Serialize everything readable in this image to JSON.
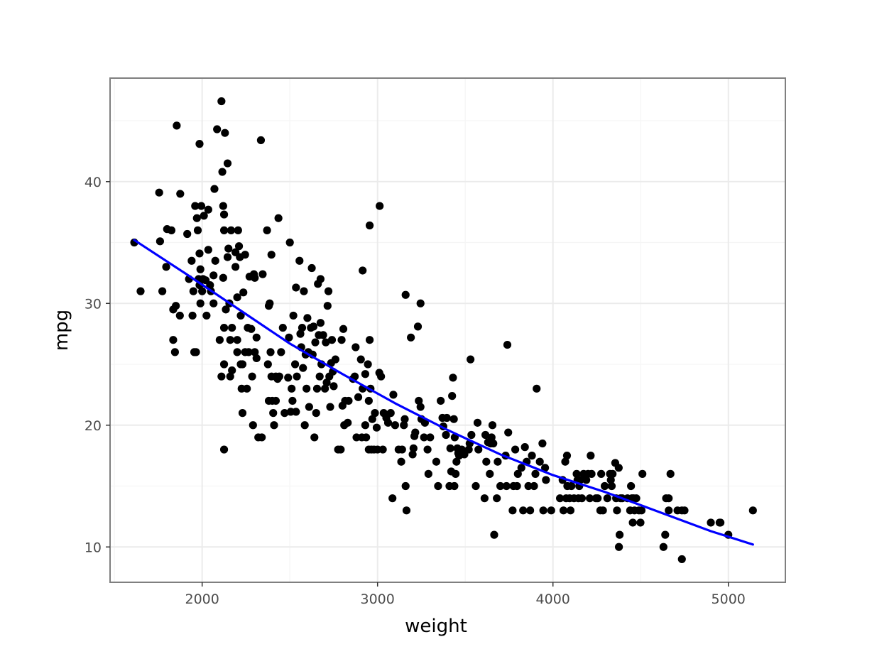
{
  "chart_data": {
    "type": "scatter",
    "title": "",
    "xlabel": "weight",
    "ylabel": "mpg",
    "xlim": [
      1475,
      5325
    ],
    "ylim": [
      7.1,
      48.5
    ],
    "x_ticks": [
      2000,
      3000,
      4000,
      5000
    ],
    "y_ticks": [
      10,
      20,
      30,
      40
    ],
    "x_tick_labels": [
      "2000",
      "3000",
      "4000",
      "5000"
    ],
    "y_tick_labels": [
      "10",
      "20",
      "30",
      "40"
    ],
    "grid": true,
    "legend": "none",
    "point_color": "#000000",
    "trend_color": "#0000ff",
    "panel_border_color": "#7f7f7f",
    "grid_major_color": "#ebebeb",
    "grid_minor_color": "#f5f5f5",
    "points": [
      [
        1613,
        35
      ],
      [
        1649,
        31
      ],
      [
        1755,
        39.1
      ],
      [
        1760,
        35.1
      ],
      [
        1773,
        31
      ],
      [
        1795,
        33
      ],
      [
        1800,
        36.1
      ],
      [
        1825,
        36
      ],
      [
        1835,
        29.5
      ],
      [
        1845,
        26
      ],
      [
        1835,
        27
      ],
      [
        1850,
        29.8
      ],
      [
        1855,
        44.6
      ],
      [
        1875,
        39
      ],
      [
        1873,
        29
      ],
      [
        1915,
        35.7
      ],
      [
        1925,
        32
      ],
      [
        1940,
        33.5
      ],
      [
        1945,
        29
      ],
      [
        1950,
        31
      ],
      [
        1955,
        26
      ],
      [
        1965,
        26
      ],
      [
        1960,
        38
      ],
      [
        1970,
        37
      ],
      [
        1975,
        36
      ],
      [
        1980,
        32
      ],
      [
        1985,
        34.1
      ],
      [
        1985,
        31.5
      ],
      [
        1985,
        43.1
      ],
      [
        1990,
        32.8
      ],
      [
        1990,
        30
      ],
      [
        1995,
        38
      ],
      [
        2000,
        31
      ],
      [
        2005,
        32
      ],
      [
        2010,
        37.2
      ],
      [
        2020,
        31.9
      ],
      [
        2025,
        29
      ],
      [
        2035,
        37.7
      ],
      [
        2035,
        34.4
      ],
      [
        2045,
        31.5
      ],
      [
        2050,
        31
      ],
      [
        2065,
        32.3
      ],
      [
        2065,
        30
      ],
      [
        2070,
        39.4
      ],
      [
        2075,
        33.5
      ],
      [
        2085,
        44.3
      ],
      [
        2100,
        27
      ],
      [
        2110,
        46.6
      ],
      [
        2110,
        24
      ],
      [
        2115,
        40.8
      ],
      [
        2120,
        32.1
      ],
      [
        2120,
        38
      ],
      [
        2125,
        37.3
      ],
      [
        2125,
        36
      ],
      [
        2125,
        28
      ],
      [
        2125,
        25
      ],
      [
        2125,
        18
      ],
      [
        2130,
        44
      ],
      [
        2135,
        29.5
      ],
      [
        2145,
        41.5
      ],
      [
        2145,
        33.8
      ],
      [
        2150,
        34.5
      ],
      [
        2155,
        30
      ],
      [
        2160,
        27
      ],
      [
        2160,
        24
      ],
      [
        2165,
        36
      ],
      [
        2170,
        28
      ],
      [
        2170,
        24.5
      ],
      [
        2190,
        34.2
      ],
      [
        2190,
        33
      ],
      [
        2200,
        30.5
      ],
      [
        2200,
        27
      ],
      [
        2200,
        26
      ],
      [
        2205,
        36
      ],
      [
        2210,
        34.7
      ],
      [
        2215,
        33.8
      ],
      [
        2220,
        29
      ],
      [
        2220,
        25
      ],
      [
        2225,
        23
      ],
      [
        2230,
        21
      ],
      [
        2230,
        25
      ],
      [
        2235,
        30.9
      ],
      [
        2245,
        34
      ],
      [
        2245,
        26
      ],
      [
        2255,
        23
      ],
      [
        2260,
        28
      ],
      [
        2265,
        26
      ],
      [
        2270,
        32.2
      ],
      [
        2280,
        27.9
      ],
      [
        2285,
        24
      ],
      [
        2290,
        20
      ],
      [
        2295,
        32.4
      ],
      [
        2300,
        32.1
      ],
      [
        2300,
        26
      ],
      [
        2310,
        25.5
      ],
      [
        2310,
        27.2
      ],
      [
        2320,
        19
      ],
      [
        2335,
        43.4
      ],
      [
        2340,
        19
      ],
      [
        2345,
        32.4
      ],
      [
        2370,
        36
      ],
      [
        2375,
        25
      ],
      [
        2380,
        29.8
      ],
      [
        2380,
        22
      ],
      [
        2385,
        30
      ],
      [
        2390,
        26
      ],
      [
        2395,
        24
      ],
      [
        2395,
        34
      ],
      [
        2400,
        22
      ],
      [
        2405,
        21
      ],
      [
        2410,
        20
      ],
      [
        2420,
        22
      ],
      [
        2420,
        24
      ],
      [
        2430,
        23.8
      ],
      [
        2435,
        37
      ],
      [
        2440,
        24
      ],
      [
        2450,
        26
      ],
      [
        2460,
        28
      ],
      [
        2470,
        21
      ],
      [
        2490,
        23.9
      ],
      [
        2495,
        27.2
      ],
      [
        2500,
        35
      ],
      [
        2505,
        21.1
      ],
      [
        2510,
        23
      ],
      [
        2515,
        22
      ],
      [
        2520,
        29
      ],
      [
        2530,
        25
      ],
      [
        2535,
        31.3
      ],
      [
        2535,
        21.1
      ],
      [
        2540,
        24
      ],
      [
        2555,
        33.5
      ],
      [
        2560,
        27.5
      ],
      [
        2565,
        26.4
      ],
      [
        2570,
        28
      ],
      [
        2575,
        24.7
      ],
      [
        2580,
        31
      ],
      [
        2585,
        20
      ],
      [
        2590,
        25.8
      ],
      [
        2595,
        23
      ],
      [
        2600,
        28.8
      ],
      [
        2605,
        26
      ],
      [
        2610,
        21.5
      ],
      [
        2620,
        28
      ],
      [
        2625,
        32.9
      ],
      [
        2630,
        25.8
      ],
      [
        2635,
        28.1
      ],
      [
        2640,
        19
      ],
      [
        2645,
        26.8
      ],
      [
        2650,
        21
      ],
      [
        2655,
        23
      ],
      [
        2660,
        31.6
      ],
      [
        2665,
        27.4
      ],
      [
        2670,
        24
      ],
      [
        2675,
        28.4
      ],
      [
        2675,
        32
      ],
      [
        2680,
        25
      ],
      [
        2690,
        27.4
      ],
      [
        2700,
        23
      ],
      [
        2705,
        26.8
      ],
      [
        2710,
        23.5
      ],
      [
        2715,
        29.8
      ],
      [
        2720,
        31
      ],
      [
        2725,
        24
      ],
      [
        2730,
        21.5
      ],
      [
        2735,
        25.1
      ],
      [
        2740,
        27
      ],
      [
        2745,
        24.4
      ],
      [
        2750,
        23.2
      ],
      [
        2760,
        25.4
      ],
      [
        2775,
        18
      ],
      [
        2790,
        18
      ],
      [
        2795,
        27
      ],
      [
        2800,
        21.6
      ],
      [
        2805,
        27.9
      ],
      [
        2810,
        20
      ],
      [
        2815,
        22
      ],
      [
        2830,
        20.2
      ],
      [
        2835,
        22
      ],
      [
        2860,
        23.8
      ],
      [
        2870,
        24
      ],
      [
        2875,
        26.4
      ],
      [
        2880,
        19
      ],
      [
        2890,
        22.3
      ],
      [
        2905,
        25.4
      ],
      [
        2910,
        19
      ],
      [
        2915,
        23
      ],
      [
        2915,
        32.7
      ],
      [
        2930,
        20
      ],
      [
        2930,
        24.2
      ],
      [
        2935,
        19
      ],
      [
        2945,
        25
      ],
      [
        2950,
        18
      ],
      [
        2950,
        22
      ],
      [
        2955,
        36.4
      ],
      [
        2955,
        27
      ],
      [
        2960,
        23
      ],
      [
        2965,
        18
      ],
      [
        2970,
        20.5
      ],
      [
        2980,
        18
      ],
      [
        2985,
        21
      ],
      [
        2995,
        19.8
      ],
      [
        3000,
        18
      ],
      [
        3010,
        24.3
      ],
      [
        3012,
        38
      ],
      [
        3020,
        24
      ],
      [
        3030,
        18
      ],
      [
        3035,
        21
      ],
      [
        3050,
        20.6
      ],
      [
        3060,
        20.2
      ],
      [
        3075,
        21
      ],
      [
        3085,
        14
      ],
      [
        3090,
        22.5
      ],
      [
        3100,
        20
      ],
      [
        3120,
        18
      ],
      [
        3135,
        17
      ],
      [
        3140,
        18
      ],
      [
        3150,
        20
      ],
      [
        3155,
        20.5
      ],
      [
        3160,
        15
      ],
      [
        3160,
        30.7
      ],
      [
        3165,
        13
      ],
      [
        3190,
        27.2
      ],
      [
        3200,
        17.6
      ],
      [
        3205,
        18.1
      ],
      [
        3210,
        19.1
      ],
      [
        3215,
        19.4
      ],
      [
        3230,
        28.1
      ],
      [
        3235,
        22
      ],
      [
        3245,
        30
      ],
      [
        3245,
        21.5
      ],
      [
        3250,
        20.5
      ],
      [
        3265,
        19
      ],
      [
        3270,
        20.2
      ],
      [
        3285,
        18
      ],
      [
        3290,
        16
      ],
      [
        3300,
        19
      ],
      [
        3335,
        17
      ],
      [
        3345,
        15
      ],
      [
        3360,
        22
      ],
      [
        3370,
        20.6
      ],
      [
        3375,
        19.9
      ],
      [
        3390,
        19.2
      ],
      [
        3395,
        20.6
      ],
      [
        3410,
        15
      ],
      [
        3415,
        18.1
      ],
      [
        3420,
        16.2
      ],
      [
        3425,
        22.4
      ],
      [
        3430,
        23.9
      ],
      [
        3435,
        20.5
      ],
      [
        3438,
        15
      ],
      [
        3440,
        19
      ],
      [
        3445,
        16
      ],
      [
        3450,
        17
      ],
      [
        3455,
        18.1
      ],
      [
        3460,
        17.7
      ],
      [
        3465,
        17.5
      ],
      [
        3480,
        18
      ],
      [
        3495,
        17.6
      ],
      [
        3520,
        18
      ],
      [
        3525,
        18.5
      ],
      [
        3530,
        25.4
      ],
      [
        3535,
        19.2
      ],
      [
        3560,
        15
      ],
      [
        3570,
        20.2
      ],
      [
        3575,
        18
      ],
      [
        3610,
        14
      ],
      [
        3615,
        19.2
      ],
      [
        3620,
        17
      ],
      [
        3630,
        18.6
      ],
      [
        3640,
        16
      ],
      [
        3645,
        18.5
      ],
      [
        3650,
        19
      ],
      [
        3655,
        20
      ],
      [
        3660,
        18.5
      ],
      [
        3665,
        11
      ],
      [
        3680,
        14
      ],
      [
        3685,
        17
      ],
      [
        3700,
        15
      ],
      [
        3730,
        17.5
      ],
      [
        3735,
        15
      ],
      [
        3740,
        26.6
      ],
      [
        3745,
        19.4
      ],
      [
        3770,
        13
      ],
      [
        3775,
        15
      ],
      [
        3785,
        18
      ],
      [
        3795,
        15
      ],
      [
        3800,
        16
      ],
      [
        3820,
        16.5
      ],
      [
        3830,
        13
      ],
      [
        3840,
        18.2
      ],
      [
        3850,
        17
      ],
      [
        3860,
        15
      ],
      [
        3870,
        13
      ],
      [
        3880,
        17.5
      ],
      [
        3892,
        15
      ],
      [
        3900,
        16
      ],
      [
        3907,
        23
      ],
      [
        3925,
        17
      ],
      [
        3940,
        18.5
      ],
      [
        3945,
        13
      ],
      [
        3955,
        16.5
      ],
      [
        3960,
        15.5
      ],
      [
        3990,
        13
      ],
      [
        4040,
        14
      ],
      [
        4055,
        15.5
      ],
      [
        4060,
        13
      ],
      [
        4070,
        17
      ],
      [
        4075,
        14
      ],
      [
        4080,
        17.5
      ],
      [
        4082,
        15
      ],
      [
        4095,
        14
      ],
      [
        4100,
        13
      ],
      [
        4105,
        15
      ],
      [
        4120,
        14
      ],
      [
        4135,
        16
      ],
      [
        4140,
        15.5
      ],
      [
        4145,
        14
      ],
      [
        4150,
        15
      ],
      [
        4155,
        15.5
      ],
      [
        4165,
        14
      ],
      [
        4175,
        16
      ],
      [
        4190,
        15.5
      ],
      [
        4200,
        16
      ],
      [
        4210,
        14
      ],
      [
        4215,
        17.5
      ],
      [
        4220,
        16
      ],
      [
        4245,
        14
      ],
      [
        4255,
        14
      ],
      [
        4270,
        13
      ],
      [
        4275,
        16
      ],
      [
        4285,
        13
      ],
      [
        4295,
        15
      ],
      [
        4310,
        14
      ],
      [
        4325,
        16
      ],
      [
        4330,
        15.5
      ],
      [
        4335,
        15
      ],
      [
        4340,
        16
      ],
      [
        4355,
        16.9
      ],
      [
        4360,
        14
      ],
      [
        4365,
        13
      ],
      [
        4375,
        16.5
      ],
      [
        4376,
        10
      ],
      [
        4380,
        11
      ],
      [
        4385,
        14
      ],
      [
        4395,
        14
      ],
      [
        4425,
        14
      ],
      [
        4440,
        13
      ],
      [
        4445,
        15
      ],
      [
        4450,
        14
      ],
      [
        4455,
        12
      ],
      [
        4460,
        14
      ],
      [
        4465,
        13
      ],
      [
        4475,
        14
      ],
      [
        4490,
        13
      ],
      [
        4499,
        12
      ],
      [
        4505,
        13
      ],
      [
        4510,
        16
      ],
      [
        4630,
        10
      ],
      [
        4640,
        11
      ],
      [
        4645,
        14
      ],
      [
        4660,
        14
      ],
      [
        4660,
        13
      ],
      [
        4670,
        16
      ],
      [
        4710,
        13
      ],
      [
        4735,
        9
      ],
      [
        4735,
        13
      ],
      [
        4750,
        13
      ],
      [
        4900,
        12
      ],
      [
        4950,
        12
      ],
      [
        4955,
        12
      ],
      [
        5000,
        11
      ],
      [
        5140,
        13
      ]
    ],
    "trend_line": {
      "x": [
        1613,
        1900,
        2200,
        2500,
        2800,
        3100,
        3400,
        3700,
        4000,
        4300,
        4600,
        4900,
        5140
      ],
      "y": [
        35.2,
        32.5,
        29.6,
        26.7,
        24.2,
        21.8,
        19.6,
        17.6,
        15.9,
        14.5,
        12.9,
        11.3,
        10.2
      ]
    }
  }
}
